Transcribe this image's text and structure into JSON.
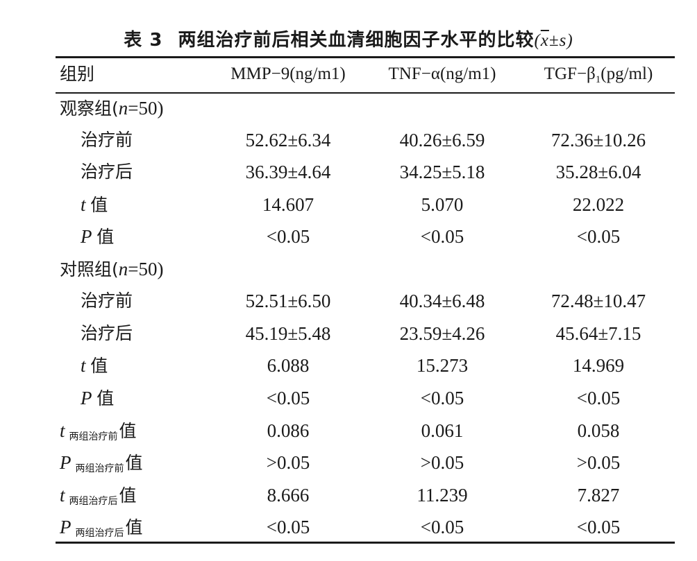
{
  "caption": {
    "table_no": "表 3",
    "title": "两组治疗前后相关血清细胞因子水平的比较",
    "open": "(",
    "xbar": "x",
    "pm_s": "±s",
    "close": ")"
  },
  "header": {
    "col0": "组别",
    "col1": "MMP−9(ng/m1)",
    "col2": "TNF−α(ng/m1)",
    "col3_pre": "TGF−β",
    "col3_sub": "1",
    "col3_post": "(pg/ml)"
  },
  "groups": [
    {
      "label_pre": "观察组(",
      "n_var": "n",
      "label_post": "=50)",
      "rows": [
        {
          "label": "治疗前",
          "v1": "52.62±6.34",
          "v2": "40.26±6.59",
          "v3": "72.36±10.26"
        },
        {
          "label": "治疗后",
          "v1": "36.39±4.64",
          "v2": "34.25±5.18",
          "v3": "35.28±6.04"
        },
        {
          "stat": "t",
          "suffix": "值",
          "v1": "14.607",
          "v2": "5.070",
          "v3": "22.022"
        },
        {
          "stat": "P",
          "suffix": "值",
          "v1": "<0.05",
          "v2": "<0.05",
          "v3": "<0.05"
        }
      ]
    },
    {
      "label_pre": "对照组(",
      "n_var": "n",
      "label_post": "=50)",
      "rows": [
        {
          "label": "治疗前",
          "v1": "52.51±6.50",
          "v2": "40.34±6.48",
          "v3": "72.48±10.47"
        },
        {
          "label": "治疗后",
          "v1": "45.19±5.48",
          "v2": "23.59±4.26",
          "v3": "45.64±7.15"
        },
        {
          "stat": "t",
          "suffix": "值",
          "v1": "6.088",
          "v2": "15.273",
          "v3": "14.969"
        },
        {
          "stat": "P",
          "suffix": "值",
          "v1": "<0.05",
          "v2": "<0.05",
          "v3": "<0.05"
        }
      ]
    }
  ],
  "comparisons": [
    {
      "stat": "t",
      "sub": "两组治疗前",
      "suffix": "值",
      "v1": "0.086",
      "v2": "0.061",
      "v3": "0.058"
    },
    {
      "stat": "P",
      "sub": "两组治疗前",
      "suffix": "值",
      "v1": ">0.05",
      "v2": ">0.05",
      "v3": ">0.05"
    },
    {
      "stat": "t",
      "sub": "两组治疗后",
      "suffix": "值",
      "v1": "8.666",
      "v2": "11.239",
      "v3": "7.827"
    },
    {
      "stat": "P",
      "sub": "两组治疗后",
      "suffix": "值",
      "v1": "<0.05",
      "v2": "<0.05",
      "v3": "<0.05"
    }
  ]
}
